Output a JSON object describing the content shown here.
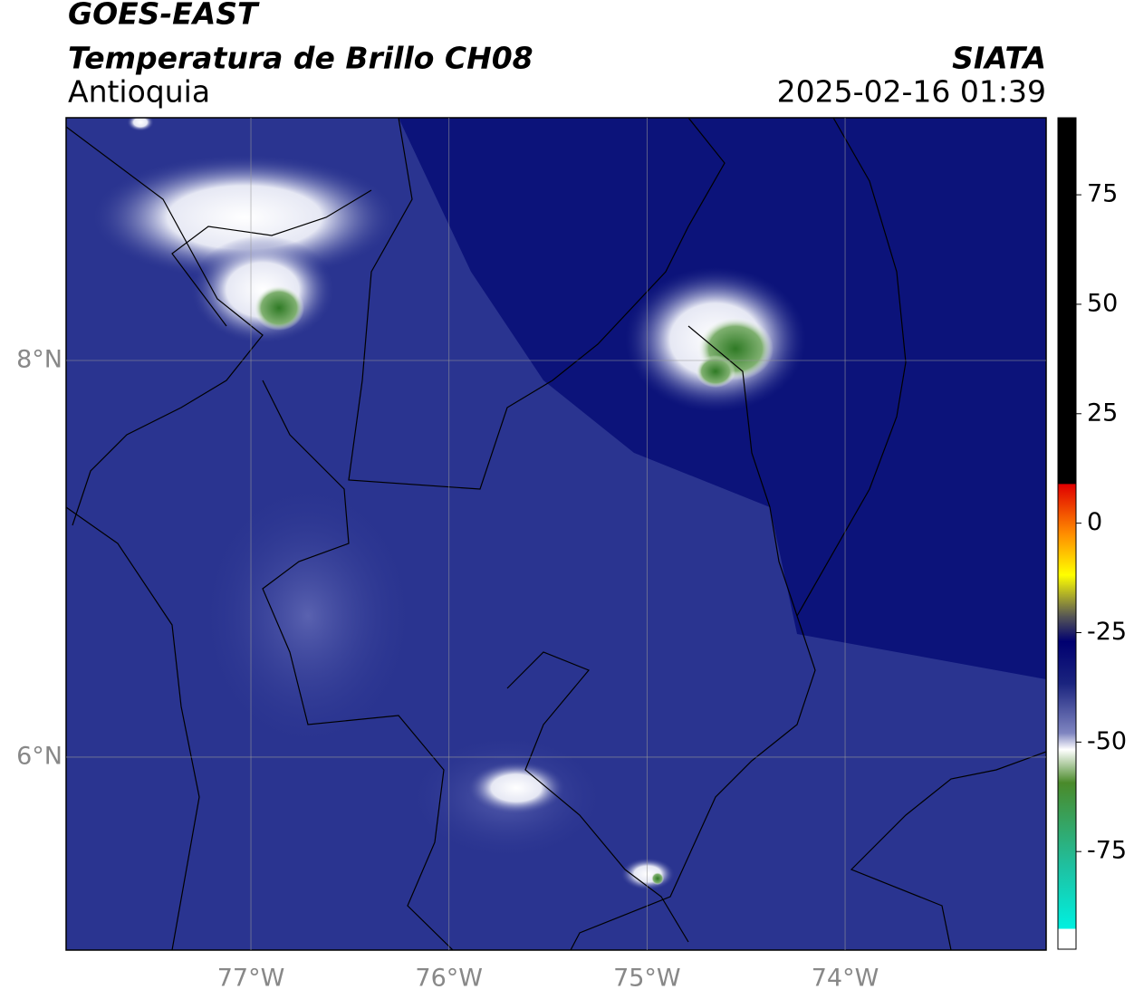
{
  "header": {
    "title": "GOES-EAST",
    "subtitle": "Temperatura de Brillo CH08",
    "region": "Antioquia",
    "source": "SIATA",
    "datetime": "2025-02-16 01:39"
  },
  "map": {
    "xlim": [
      -77.933,
      -72.985
    ],
    "ylim": [
      5.027,
      9.224
    ],
    "xticks": [
      {
        "value": -77,
        "label": "77°W"
      },
      {
        "value": -76,
        "label": "76°W"
      },
      {
        "value": -75,
        "label": "75°W"
      },
      {
        "value": -74,
        "label": "74°W"
      }
    ],
    "yticks": [
      {
        "value": 8,
        "label": "8°N"
      },
      {
        "value": 6,
        "label": "6°N"
      }
    ]
  },
  "colorbar": {
    "lim": [
      -97.3,
      92.6
    ],
    "ticks": [
      75,
      50,
      25,
      0,
      -25,
      -50,
      -75
    ]
  }
}
